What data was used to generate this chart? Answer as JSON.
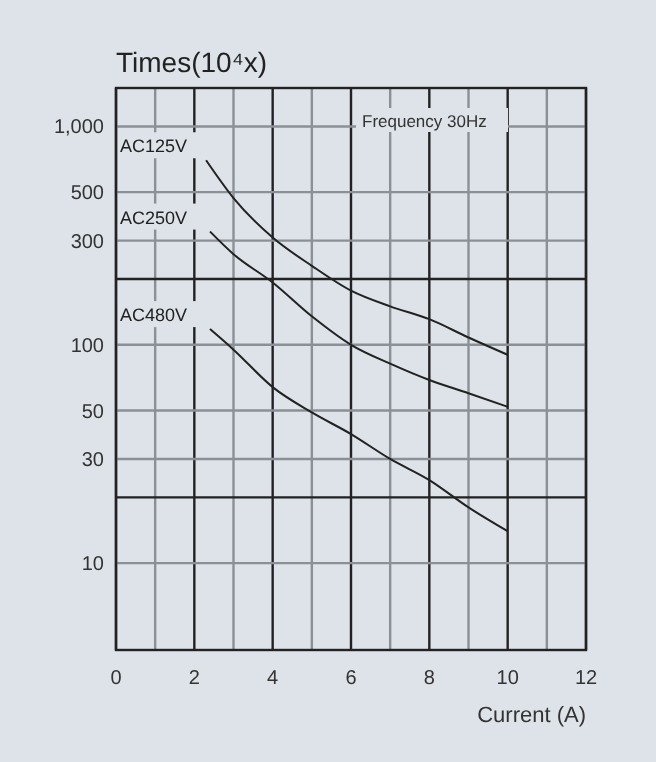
{
  "chart_data": {
    "type": "line",
    "ylabel": "Times(10⁴x)",
    "xlabel": "Current (A)",
    "log": "y",
    "grid": true,
    "marker": "none",
    "line_style": "solid",
    "annotations": [
      "Frequency 30Hz"
    ],
    "xlim": [
      0,
      12
    ],
    "xticks": [
      0,
      {
        "value": 1,
        "label": null
      },
      2,
      {
        "value": 3,
        "label": null
      },
      4,
      {
        "value": 5,
        "label": null
      },
      6,
      {
        "value": 7,
        "label": null
      },
      8,
      {
        "value": 9,
        "label": null
      },
      10,
      {
        "value": 11,
        "label": null
      },
      12
    ],
    "ylim": [
      4,
      1500
    ],
    "yticks": [
      10,
      {
        "value": 20,
        "label": null
      },
      30,
      50,
      100,
      {
        "value": 200,
        "label": null
      },
      300,
      500,
      {
        "value": 1000,
        "label": "1,000"
      }
    ],
    "series": [
      {
        "name": "AC125V",
        "color": "#222222",
        "x": [
          2.3,
          3,
          4,
          5,
          6,
          7,
          8,
          9,
          10
        ],
        "values": [
          700,
          470,
          310,
          230,
          177,
          150,
          131,
          108,
          90
        ]
      },
      {
        "name": "AC250V",
        "color": "#222222",
        "x": [
          2.4,
          3,
          4,
          5,
          6,
          7,
          8,
          9,
          10
        ],
        "values": [
          330,
          260,
          193,
          135,
          100,
          82,
          69,
          60,
          52
        ]
      },
      {
        "name": "AC480V",
        "color": "#222222",
        "x": [
          2.4,
          3,
          4,
          5,
          6,
          7,
          8,
          9,
          10
        ],
        "values": [
          118,
          95,
          64,
          49,
          39,
          30,
          24,
          18,
          14
        ]
      }
    ]
  }
}
